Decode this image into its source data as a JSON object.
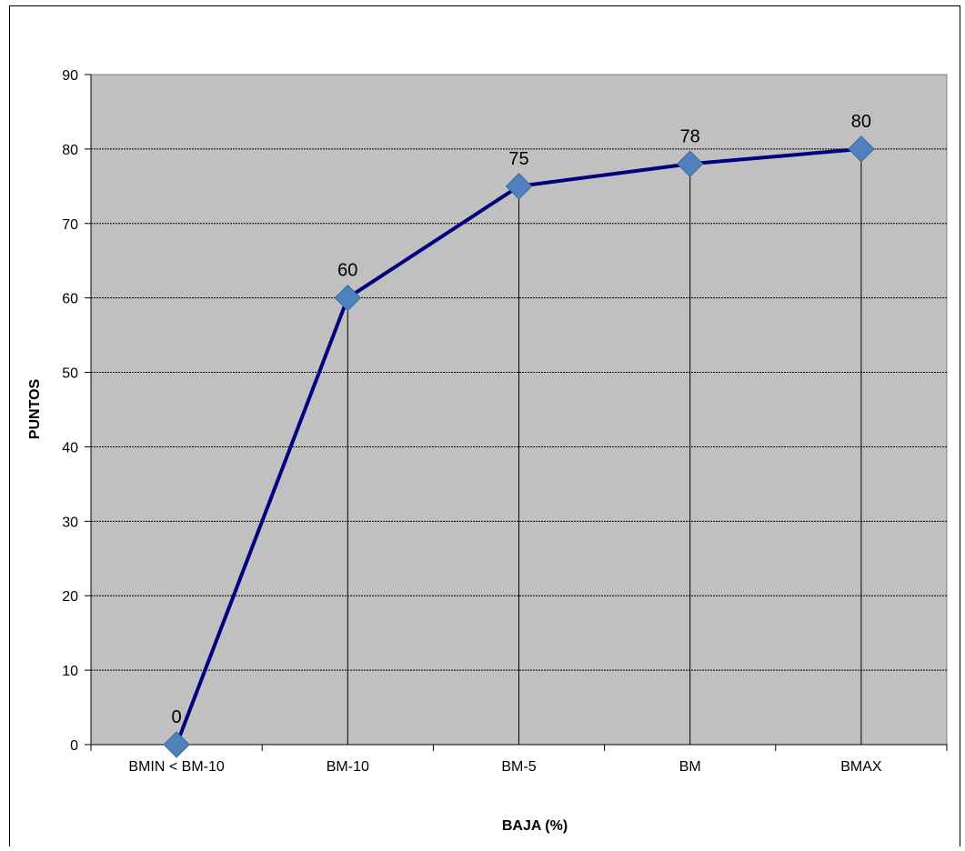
{
  "chart_data": {
    "type": "line",
    "categories": [
      "BMIN < BM-10",
      "BM-10",
      "BM-5",
      "BM",
      "BMAX"
    ],
    "series": [
      {
        "values": [
          0,
          60,
          75,
          78,
          80
        ],
        "color": "#000080",
        "marker": "diamond",
        "marker_color": "#4F81BD"
      }
    ],
    "data_labels": [
      "0",
      "60",
      "75",
      "78",
      "80"
    ],
    "xlabel": "BAJA (%)",
    "ylabel": "PUNTOS",
    "ylim": [
      0,
      90
    ],
    "yticks": [
      0,
      10,
      20,
      30,
      40,
      50,
      60,
      70,
      80,
      90
    ],
    "ytick_labels": [
      "0",
      "10",
      "20",
      "30",
      "40",
      "50",
      "60",
      "70",
      "80",
      "90"
    ],
    "grid": "horizontal dashed",
    "drop_lines": true,
    "plot_background": "#C0C0C0",
    "legend": "none"
  }
}
